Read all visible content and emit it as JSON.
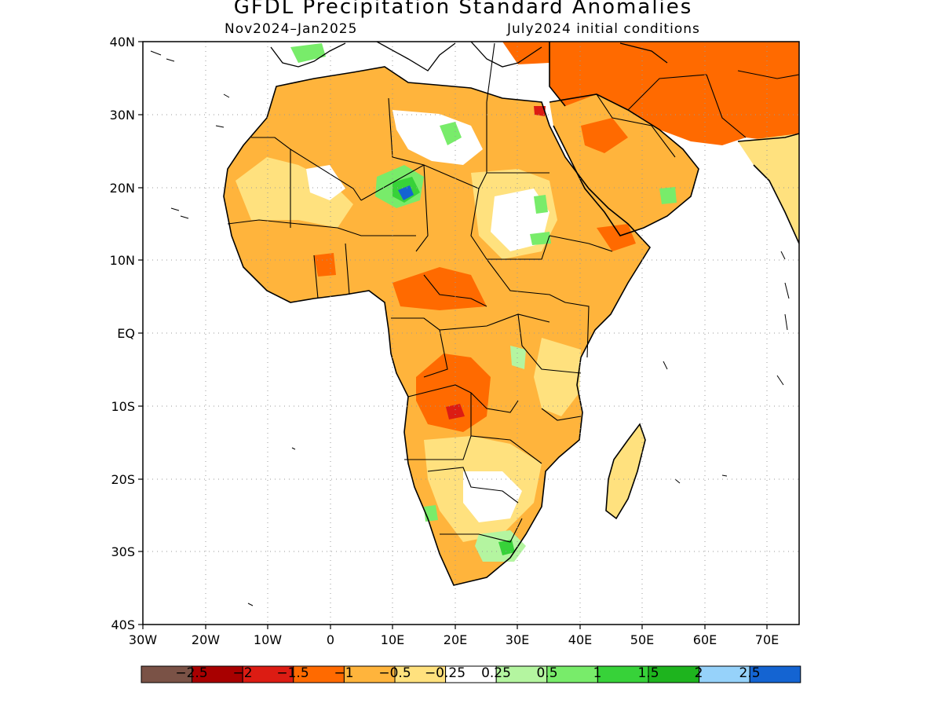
{
  "title": "GFDL Precipitation Standard Anomalies",
  "period": "Nov2024–Jan2025",
  "init": "July2024 initial conditions",
  "lat_labels": [
    "40N",
    "30N",
    "20N",
    "10N",
    "EQ",
    "10S",
    "20S",
    "30S",
    "40S"
  ],
  "lon_labels": [
    "30W",
    "20W",
    "10W",
    "0",
    "10E",
    "20E",
    "30E",
    "40E",
    "50E",
    "60E",
    "70E"
  ],
  "colorbar": {
    "colors": [
      "#7a5246",
      "#a80000",
      "#dc1c13",
      "#ff6a00",
      "#ffb43c",
      "#ffe17e",
      "#ffffff",
      "#b4f5a0",
      "#78ec6a",
      "#37d239",
      "#1eb41e",
      "#96d2fa",
      "#1464d2"
    ],
    "labels": [
      "−2.5",
      "−2",
      "−1.5",
      "−1",
      "−0.5",
      "−0.25",
      "0.25",
      "0.5",
      "1",
      "1.5",
      "2",
      "2.5"
    ]
  },
  "colors": {
    "ocean": "#ffffff",
    "grid": "#999999",
    "border": "#000000"
  }
}
